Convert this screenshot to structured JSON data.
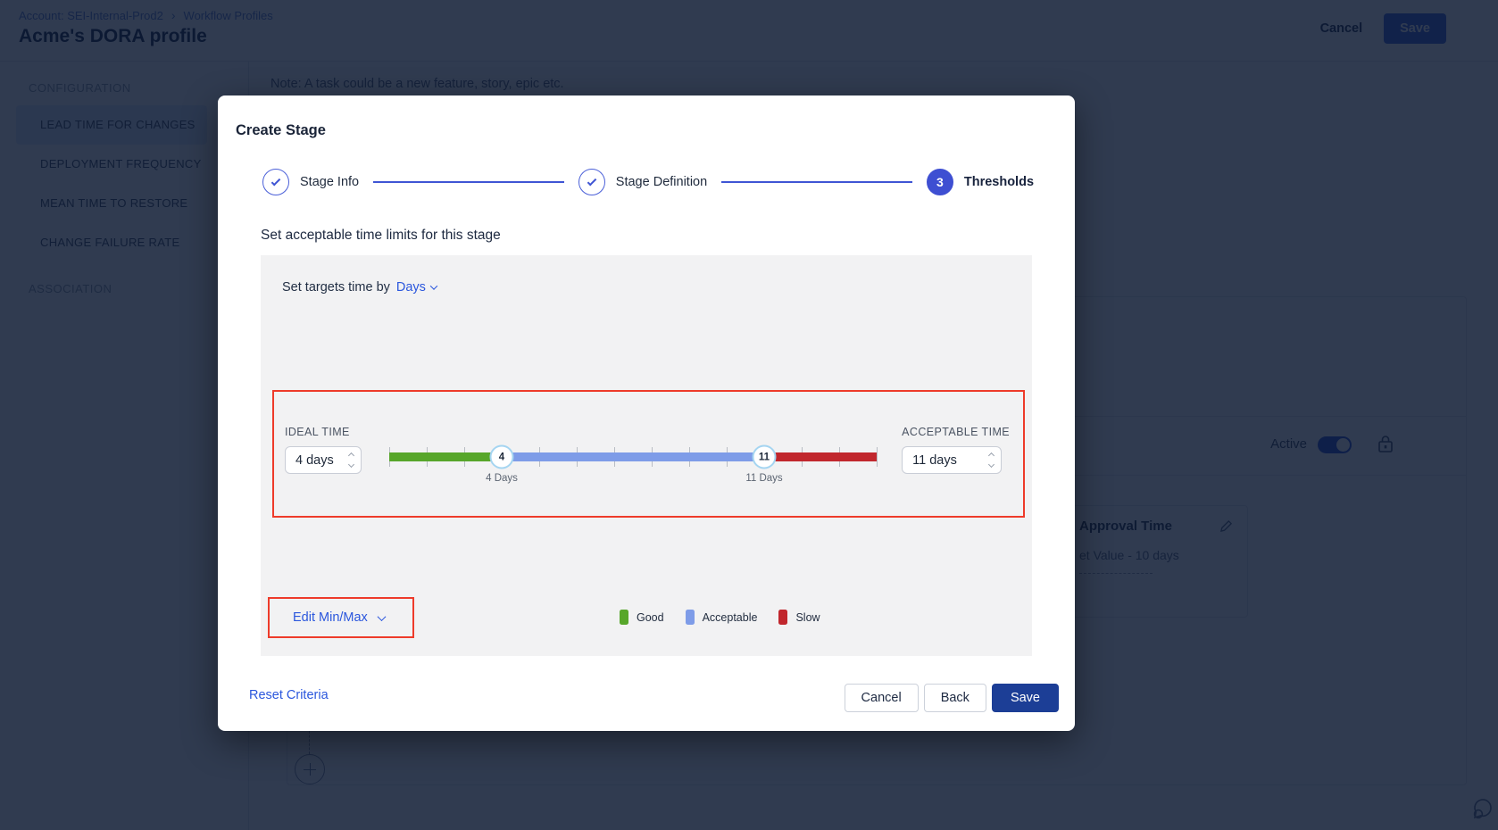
{
  "bg": {
    "breadcrumb": {
      "account": "Account: SEI-Internal-Prod2",
      "section": "Workflow Profiles"
    },
    "title": "Acme's DORA profile",
    "actions": {
      "cancel": "Cancel",
      "save": "Save"
    },
    "sidebar": {
      "section1": "CONFIGURATION",
      "items": [
        "LEAD TIME FOR CHANGES",
        "DEPLOYMENT FREQUENCY",
        "MEAN TIME TO RESTORE",
        "CHANGE FAILURE RATE"
      ],
      "selected_item": "LEAD TIME FOR CHANGES",
      "section2": "ASSOCIATION"
    },
    "note": "Note: A task could be a new feature, story, epic etc.",
    "active_label": "Active",
    "card": {
      "title": "Approval Time",
      "value_fragment": "et Value - 10 days"
    }
  },
  "modal": {
    "title": "Create Stage",
    "stepper": {
      "step1": {
        "label": "Stage Info",
        "state": "done"
      },
      "step2": {
        "label": "Stage Definition",
        "state": "done"
      },
      "step3": {
        "label": "Thresholds",
        "number": "3",
        "state": "active"
      }
    },
    "subtitle": "Set acceptable time limits for this stage",
    "panel": {
      "set_targets_prefix": "Set targets time by",
      "unit": "Days",
      "ideal_label": "IDEAL TIME",
      "ideal_value": "4 days",
      "acceptable_label": "ACCEPTABLE TIME",
      "acceptable_value": "11 days",
      "slider": {
        "min_days": 1,
        "max_days": 14,
        "ideal_days": 4,
        "acceptable_days": 11,
        "ideal_handle": "4",
        "acceptable_handle": "11",
        "ideal_caption": "4 Days",
        "acceptable_caption": "11 Days"
      },
      "edit_minmax_label": "Edit Min/Max",
      "legend": {
        "good": "Good",
        "acceptable": "Acceptable",
        "slow": "Slow"
      }
    },
    "footer": {
      "reset": "Reset Criteria",
      "cancel": "Cancel",
      "back": "Back",
      "save": "Save"
    }
  },
  "icons": {
    "breadcrumb_separator": "›"
  },
  "colors": {
    "accent_blue": "#2b57dd",
    "stepper_blue": "#3e4fd2",
    "good_green": "#57a62a",
    "acceptable_blue": "#7e9ce8",
    "slow_red": "#c1272d",
    "highlight_red": "#ee3b2a",
    "save_navy": "#1c3e96"
  }
}
